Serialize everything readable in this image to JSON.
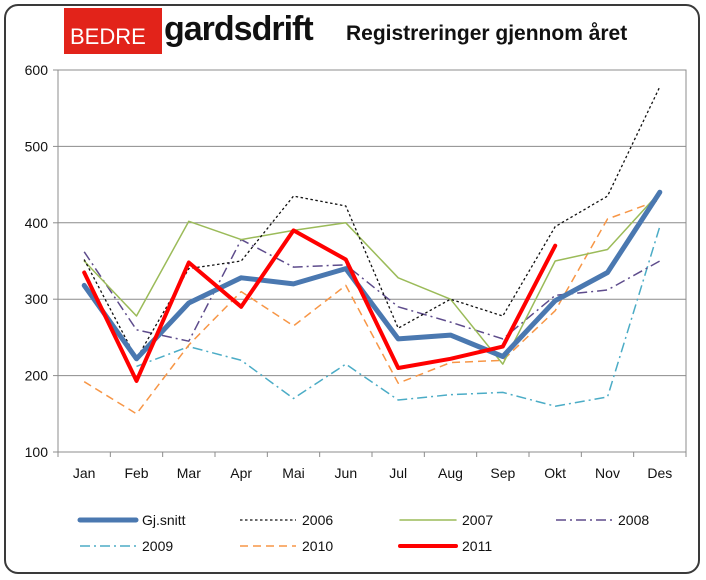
{
  "logo": {
    "part1": "BEDRE",
    "part2": "gardsdrift"
  },
  "chart_data": {
    "type": "line",
    "title": "Registreringer gjennom året",
    "categories": [
      "Jan",
      "Feb",
      "Mar",
      "Apr",
      "Mai",
      "Jun",
      "Jul",
      "Aug",
      "Sep",
      "Okt",
      "Nov",
      "Des"
    ],
    "ylim": [
      100,
      600
    ],
    "yticks": [
      100,
      200,
      300,
      400,
      500,
      600
    ],
    "grid": true,
    "legend_position": "bottom",
    "series": [
      {
        "name": "Gj.snitt",
        "color": "#4a78b0",
        "style": "solid-thick",
        "values": [
          318,
          222,
          295,
          328,
          320,
          340,
          248,
          253,
          225,
          298,
          335,
          440
        ]
      },
      {
        "name": "2006",
        "color": "#111111",
        "style": "dotted",
        "values": [
          352,
          222,
          340,
          350,
          435,
          422,
          262,
          300,
          278,
          395,
          435,
          578
        ]
      },
      {
        "name": "2007",
        "color": "#9bbb59",
        "style": "solid-thin",
        "values": [
          350,
          278,
          402,
          378,
          390,
          400,
          328,
          300,
          215,
          350,
          365,
          440
        ]
      },
      {
        "name": "2008",
        "color": "#5e4c8c",
        "style": "dashdot",
        "values": [
          362,
          260,
          245,
          378,
          342,
          345,
          290,
          270,
          248,
          305,
          312,
          350
        ]
      },
      {
        "name": "2009",
        "color": "#4bacc6",
        "style": "dashdot-light",
        "values": [
          null,
          212,
          238,
          220,
          170,
          215,
          168,
          175,
          178,
          160,
          172,
          395
        ]
      },
      {
        "name": "2010",
        "color": "#f79646",
        "style": "dashed",
        "values": [
          192,
          150,
          240,
          310,
          265,
          318,
          190,
          217,
          220,
          285,
          405,
          430
        ]
      },
      {
        "name": "2011",
        "color": "#ff0000",
        "style": "solid-red",
        "values": [
          335,
          193,
          348,
          290,
          390,
          352,
          210,
          222,
          238,
          370,
          null,
          null
        ]
      }
    ]
  }
}
